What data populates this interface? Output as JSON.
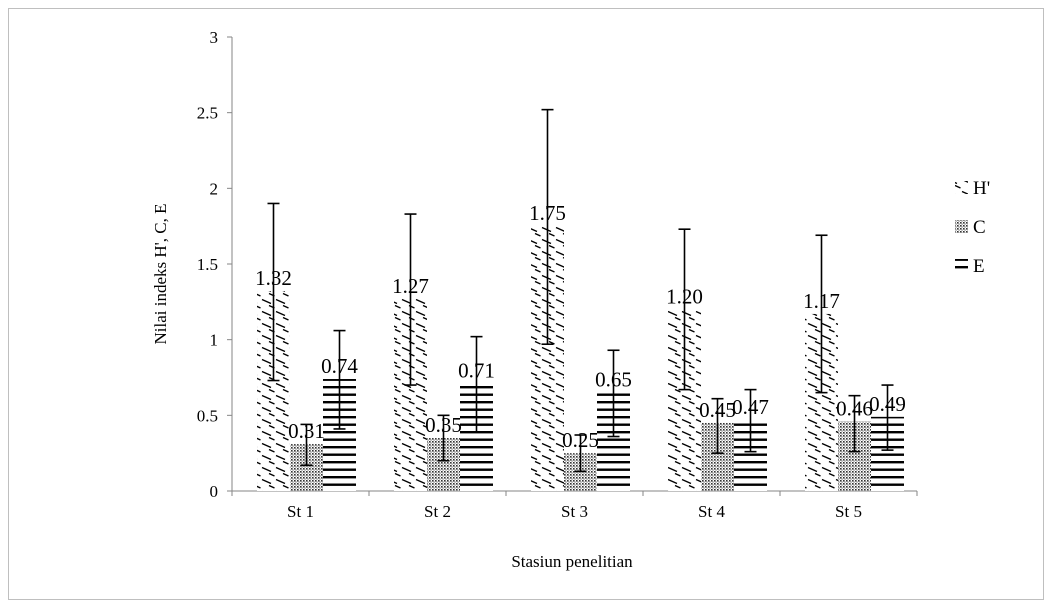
{
  "chart_data": {
    "type": "bar",
    "categories": [
      "St 1",
      "St 2",
      "St 3",
      "St 4",
      "St 5"
    ],
    "series": [
      {
        "name": "H'",
        "values": [
          1.32,
          1.27,
          1.75,
          1.2,
          1.17
        ],
        "error_high": [
          1.9,
          1.83,
          2.52,
          1.73,
          1.69
        ],
        "error_low": [
          0.73,
          0.7,
          0.97,
          0.67,
          0.65
        ],
        "labels": [
          "1.32",
          "1.27",
          "1.75",
          "1.20",
          "1.17"
        ],
        "pattern": "diagonal-dash"
      },
      {
        "name": "C",
        "values": [
          0.31,
          0.35,
          0.25,
          0.45,
          0.46
        ],
        "error_high": [
          0.44,
          0.5,
          0.37,
          0.61,
          0.63
        ],
        "error_low": [
          0.17,
          0.2,
          0.13,
          0.25,
          0.26
        ],
        "labels": [
          "0.31",
          "0.35",
          "0.25",
          "0.45",
          "0.46"
        ],
        "pattern": "dots"
      },
      {
        "name": "E",
        "values": [
          0.74,
          0.71,
          0.65,
          0.47,
          0.49
        ],
        "error_high": [
          1.06,
          1.02,
          0.93,
          0.67,
          0.7
        ],
        "error_low": [
          0.41,
          0.39,
          0.36,
          0.26,
          0.27
        ],
        "labels": [
          "0.74",
          "0.71",
          "0.65",
          "0.47",
          "0.49"
        ],
        "pattern": "horizontal-lines"
      }
    ],
    "xlabel": "Stasiun penelitian",
    "ylabel": "Nilai indeks H', C, E",
    "ylim": [
      0,
      3
    ],
    "yticks": [
      "0",
      "0.5",
      "1",
      "1.5",
      "2",
      "2.5",
      "3"
    ],
    "legend_position": "right",
    "grid": false
  }
}
